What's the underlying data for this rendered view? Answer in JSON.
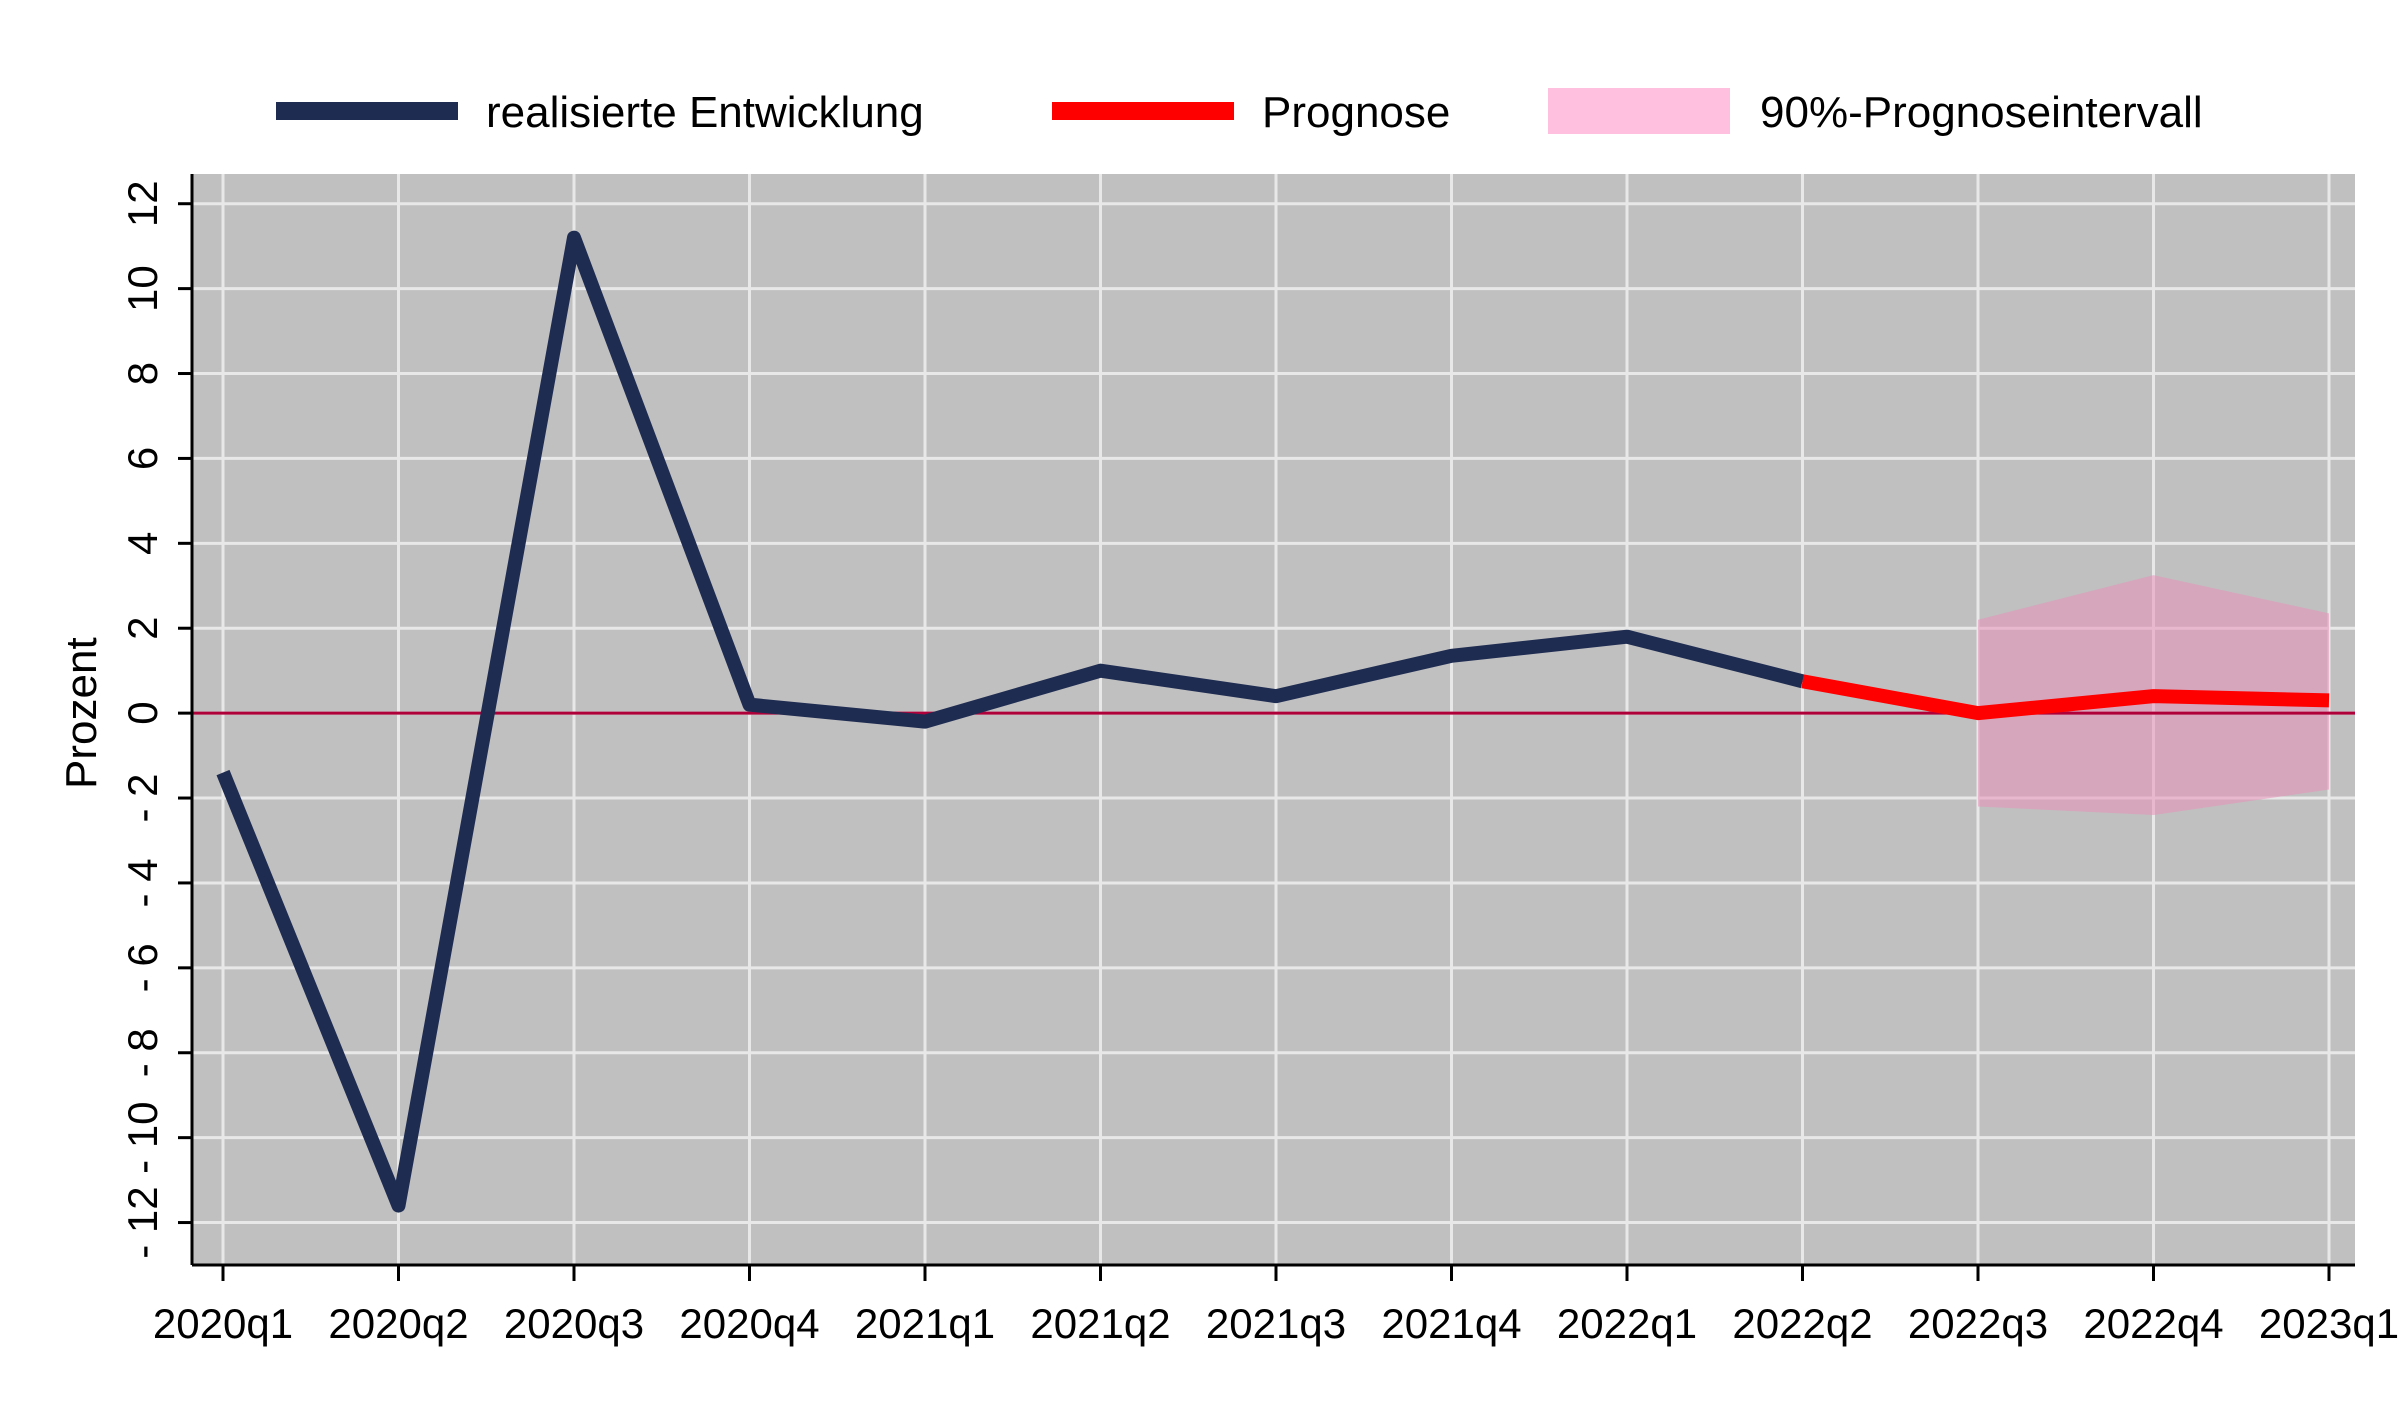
{
  "chart_data": {
    "type": "line",
    "ylabel": "Prozent",
    "ylim": [
      -13,
      12.7
    ],
    "yticks": [
      12,
      10,
      8,
      6,
      4,
      2,
      0,
      -2,
      -4,
      -6,
      -8,
      -10,
      -12
    ],
    "categories": [
      "2020q1",
      "2020q2",
      "2020q3",
      "2020q4",
      "2021q1",
      "2021q2",
      "2021q3",
      "2021q4",
      "2022q1",
      "2022q2",
      "2022q3",
      "2022q4",
      "2023q1"
    ],
    "grid": true,
    "legend_position": "top",
    "colors": {
      "plot_background": "#c0c0c0",
      "grid": "#e8e8e8",
      "realized": "#1f2c52",
      "forecast": "#ff0000",
      "interval": "#ffc0e0",
      "zero_line": "#b0003a"
    },
    "series": [
      {
        "name": "realisierte Entwicklung",
        "x": [
          "2020q1",
          "2020q2",
          "2020q3",
          "2020q4",
          "2021q1",
          "2021q2",
          "2021q3",
          "2021q4",
          "2022q1",
          "2022q2"
        ],
        "values": [
          -1.4,
          -11.6,
          11.2,
          0.2,
          -0.2,
          1.0,
          0.4,
          1.35,
          1.8,
          0.75
        ]
      },
      {
        "name": "Prognose",
        "x": [
          "2022q2",
          "2022q3",
          "2022q4",
          "2023q1"
        ],
        "values": [
          0.75,
          0.0,
          0.4,
          0.3
        ]
      }
    ],
    "interval": {
      "name": "90%-Prognoseintervall",
      "x": [
        "2022q3",
        "2022q4",
        "2023q1"
      ],
      "lower": [
        -2.2,
        -2.4,
        -1.8
      ],
      "upper": [
        2.2,
        3.25,
        2.35
      ]
    },
    "reference_line": {
      "y": 0
    }
  }
}
